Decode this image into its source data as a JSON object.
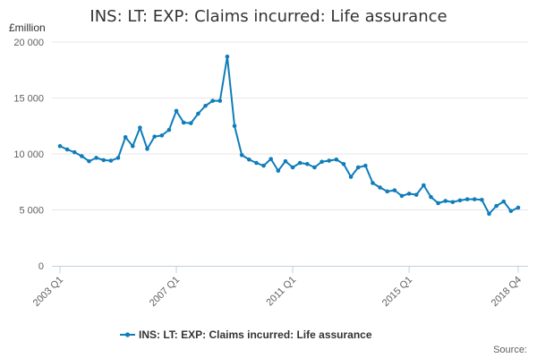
{
  "chart_data": {
    "type": "line",
    "title": "INS: LT: EXP: Claims incurred: Life assurance",
    "unit_label": "£million",
    "xlabel": "",
    "ylabel": "",
    "ylim": [
      0,
      20000
    ],
    "y_ticks": [
      "0",
      "5 000",
      "10 000",
      "15 000",
      "20 000"
    ],
    "y_tick_values": [
      0,
      5000,
      10000,
      15000,
      20000
    ],
    "x_tick_labels": [
      "2003 Q1",
      "2007 Q1",
      "2011 Q1",
      "2015 Q1",
      "2018 Q4"
    ],
    "x_tick_indices": [
      0,
      16,
      32,
      48,
      63
    ],
    "grid": "horizontal",
    "legend_position": "bottom",
    "source_label": "Source:",
    "series": [
      {
        "name": "INS: LT: EXP: Claims incurred: Life assurance",
        "color": "#0F7DB9",
        "x": [
          "2003 Q1",
          "2003 Q2",
          "2003 Q3",
          "2003 Q4",
          "2004 Q1",
          "2004 Q2",
          "2004 Q3",
          "2004 Q4",
          "2005 Q1",
          "2005 Q2",
          "2005 Q3",
          "2005 Q4",
          "2006 Q1",
          "2006 Q2",
          "2006 Q3",
          "2006 Q4",
          "2007 Q1",
          "2007 Q2",
          "2007 Q3",
          "2007 Q4",
          "2008 Q1",
          "2008 Q2",
          "2008 Q3",
          "2008 Q4",
          "2009 Q1",
          "2009 Q2",
          "2009 Q3",
          "2009 Q4",
          "2010 Q1",
          "2010 Q2",
          "2010 Q3",
          "2010 Q4",
          "2011 Q1",
          "2011 Q2",
          "2011 Q3",
          "2011 Q4",
          "2012 Q1",
          "2012 Q2",
          "2012 Q3",
          "2012 Q4",
          "2013 Q1",
          "2013 Q2",
          "2013 Q3",
          "2013 Q4",
          "2014 Q1",
          "2014 Q2",
          "2014 Q3",
          "2014 Q4",
          "2015 Q1",
          "2015 Q2",
          "2015 Q3",
          "2015 Q4",
          "2016 Q1",
          "2016 Q2",
          "2016 Q3",
          "2016 Q4",
          "2017 Q1",
          "2017 Q2",
          "2017 Q3",
          "2017 Q4",
          "2018 Q1",
          "2018 Q2",
          "2018 Q3",
          "2018 Q4"
        ],
        "values": [
          10700,
          10400,
          10150,
          9800,
          9350,
          9650,
          9450,
          9400,
          9650,
          11500,
          10700,
          12350,
          10450,
          11550,
          11650,
          12150,
          13850,
          12800,
          12750,
          13600,
          14300,
          14750,
          14750,
          18700,
          12500,
          9900,
          9500,
          9200,
          8950,
          9550,
          8500,
          9350,
          8800,
          9200,
          9100,
          8800,
          9300,
          9400,
          9500,
          9100,
          7950,
          8800,
          8950,
          7400,
          7000,
          6650,
          6750,
          6250,
          6450,
          6350,
          7200,
          6150,
          5600,
          5800,
          5700,
          5850,
          5950,
          5950,
          5900,
          4650,
          5350,
          5750,
          4900,
          5200
        ]
      }
    ]
  }
}
